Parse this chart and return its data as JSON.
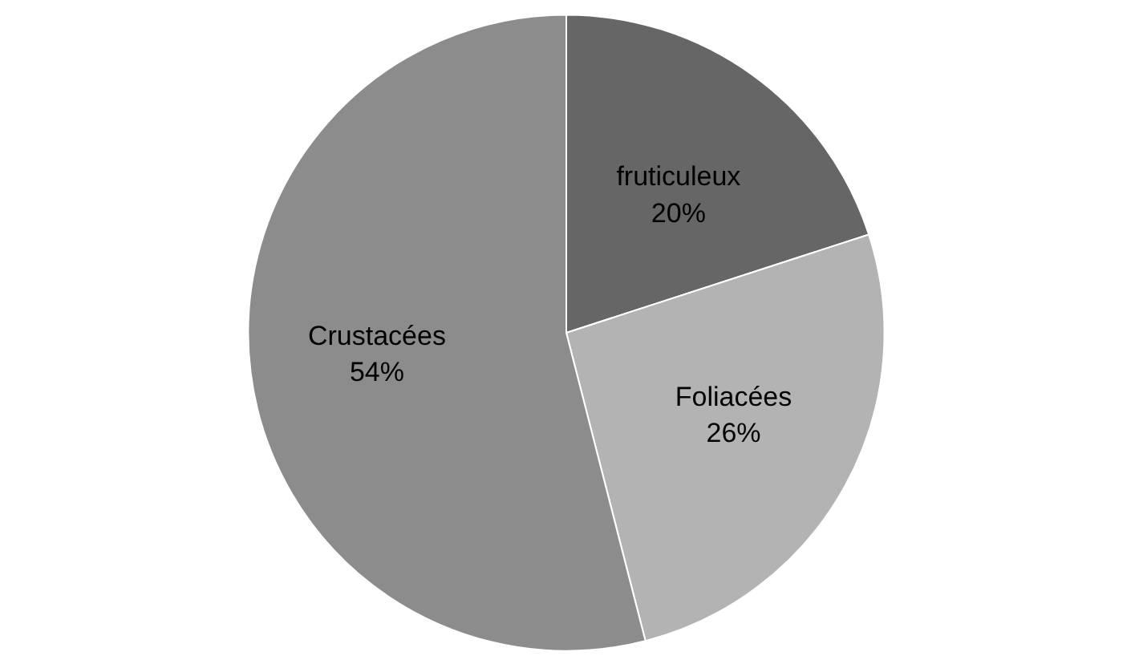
{
  "chart_data": {
    "type": "pie",
    "categories": [
      "fruticuleux",
      "Foliacées",
      "Crustacées"
    ],
    "values": [
      20,
      26,
      54
    ],
    "colors": [
      "#666666",
      "#b3b3b3",
      "#8c8c8c"
    ],
    "value_labels": [
      "20%",
      "26%",
      "54%"
    ]
  }
}
